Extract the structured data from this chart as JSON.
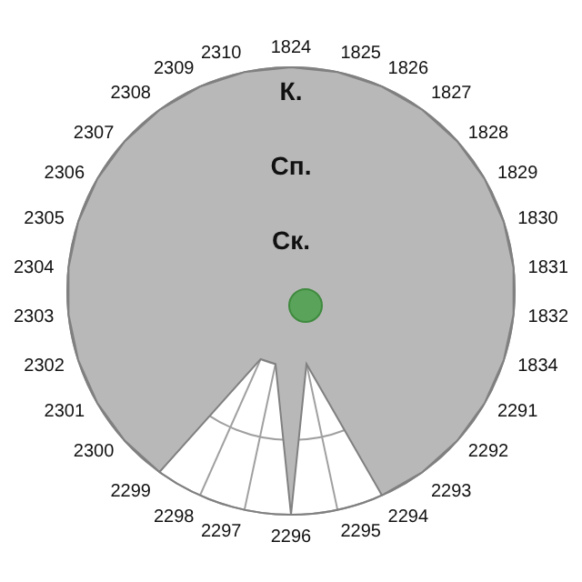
{
  "chart_data": {
    "type": "radar",
    "categories": [
      "1824",
      "1825",
      "1826",
      "1827",
      "1828",
      "1829",
      "1830",
      "1831",
      "1832",
      "1834",
      "2291",
      "2292",
      "2293",
      "2294",
      "2295",
      "2296",
      "2297",
      "2298",
      "2299",
      "2300",
      "2301",
      "2302",
      "2303",
      "2304",
      "2305",
      "2306",
      "2307",
      "2308",
      "2309",
      "2310"
    ],
    "series": [
      {
        "color": "#b8b8b8",
        "values": [
          3,
          3,
          3,
          3,
          3,
          3,
          3,
          3,
          3,
          3,
          3,
          3,
          3,
          3,
          1,
          3,
          1,
          1,
          3,
          3,
          3,
          3,
          3,
          3,
          3,
          3,
          3,
          3,
          3,
          3
        ]
      }
    ],
    "ylim": [
      0,
      3
    ],
    "yticks": [
      {
        "value": 1,
        "label": "Ск."
      },
      {
        "value": 2,
        "label": "Сп."
      },
      {
        "value": 3,
        "label": "К."
      }
    ],
    "grid": true
  }
}
